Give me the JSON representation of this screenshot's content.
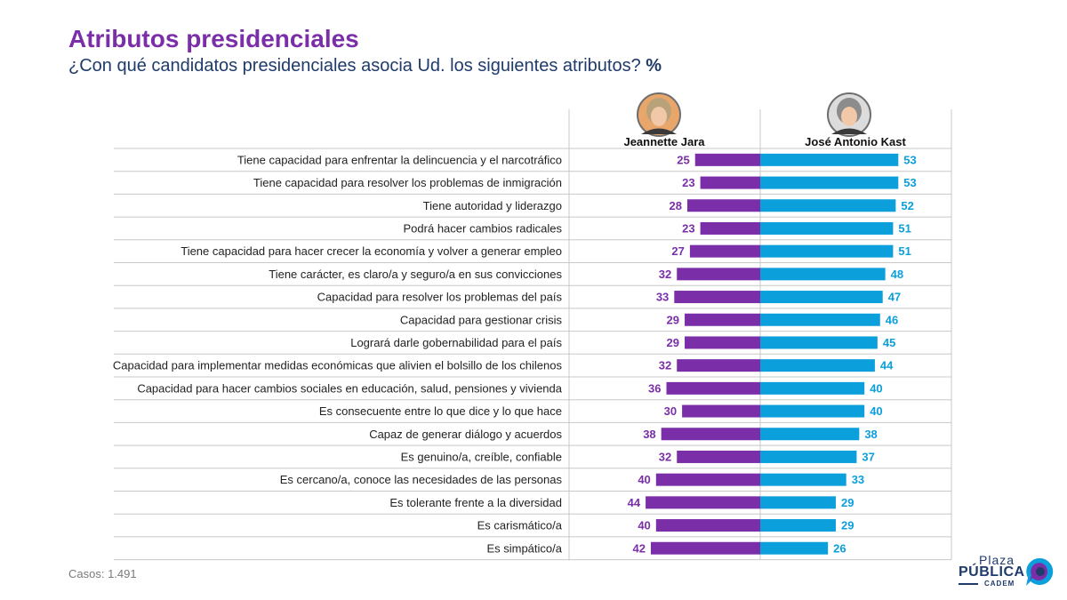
{
  "title": "Atributos presidenciales",
  "subtitle": "¿Con qué candidatos presidenciales asocia Ud. los siguientes atributos?",
  "subtitle_unit": "%",
  "casos": "Casos: 1.491",
  "logo": {
    "line1": "Plaza",
    "line2": "PÚBLICA",
    "line3": "CADEM"
  },
  "colors": {
    "jara": "#7a2fa8",
    "kast": "#0b9fdb",
    "title": "#7a2fa8",
    "text": "#1f3b6b"
  },
  "chart_data": {
    "type": "bar",
    "orientation": "horizontal-diverging",
    "unit": "%",
    "categories": [
      "Tiene capacidad para enfrentar la delincuencia y el narcotráfico",
      "Tiene capacidad para resolver los problemas de inmigración",
      "Tiene autoridad y liderazgo",
      "Podrá hacer cambios radicales",
      "Tiene capacidad para hacer crecer la economía y volver a generar empleo",
      "Tiene carácter, es claro/a y seguro/a en sus convicciones",
      "Capacidad para resolver los problemas del país",
      "Capacidad para gestionar crisis",
      "Logrará darle gobernabilidad para el país",
      "Capacidad para implementar medidas económicas que alivien el bolsillo de los chilenos",
      "Capacidad para hacer cambios sociales en educación, salud, pensiones y vivienda",
      "Es consecuente entre lo que dice y lo que hace",
      "Capaz de generar diálogo y acuerdos",
      "Es genuino/a, creíble, confiable",
      "Es cercano/a, conoce las necesidades de las personas",
      "Es tolerante frente a la diversidad",
      "Es carismático/a",
      "Es simpático/a"
    ],
    "series": [
      {
        "name": "Jeannette Jara",
        "color": "#7a2fa8",
        "side": "left",
        "values": [
          25,
          23,
          28,
          23,
          27,
          32,
          33,
          29,
          29,
          32,
          36,
          30,
          38,
          32,
          40,
          44,
          40,
          42
        ]
      },
      {
        "name": "José Antonio Kast",
        "color": "#0b9fdb",
        "side": "right",
        "values": [
          53,
          53,
          52,
          51,
          51,
          48,
          47,
          46,
          45,
          44,
          40,
          40,
          38,
          37,
          33,
          29,
          29,
          26
        ]
      }
    ]
  }
}
